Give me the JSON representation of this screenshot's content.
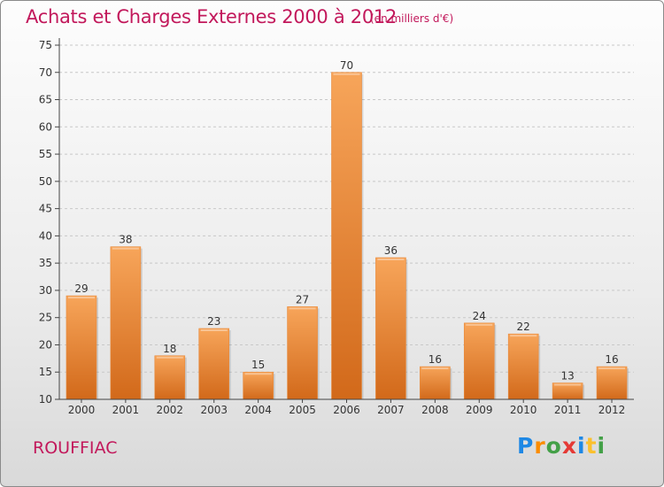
{
  "header": {
    "title": "Achats et Charges Externes 2000 à 2012",
    "unit": "(en milliers d'€)"
  },
  "footer": {
    "commune": "ROUFFIAC",
    "logo_letters": [
      {
        "ch": "P",
        "color": "#1e88e5"
      },
      {
        "ch": "r",
        "color": "#fb8c00"
      },
      {
        "ch": "o",
        "color": "#43a047"
      },
      {
        "ch": "x",
        "color": "#e53935"
      },
      {
        "ch": "i",
        "color": "#1e88e5"
      },
      {
        "ch": "t",
        "color": "#fbc02d"
      },
      {
        "ch": "i",
        "color": "#43a047"
      }
    ]
  },
  "colors": {
    "bar_light": "#f7a55a",
    "bar_dark": "#d2691a",
    "axis": "#444444",
    "grid": "#c8c8c8",
    "accent": "#c2185b"
  },
  "chart_data": {
    "type": "bar",
    "title": "Achats et Charges Externes 2000 à 2012",
    "categories": [
      "2000",
      "2001",
      "2002",
      "2003",
      "2004",
      "2005",
      "2006",
      "2007",
      "2008",
      "2009",
      "2010",
      "2011",
      "2012"
    ],
    "values": [
      29,
      38,
      18,
      23,
      15,
      27,
      70,
      36,
      16,
      24,
      22,
      13,
      16
    ],
    "ylim": [
      10,
      75
    ],
    "yticks": [
      10,
      15,
      20,
      25,
      30,
      35,
      40,
      45,
      50,
      55,
      60,
      65,
      70,
      75
    ],
    "grid": true,
    "data_labels": true
  }
}
